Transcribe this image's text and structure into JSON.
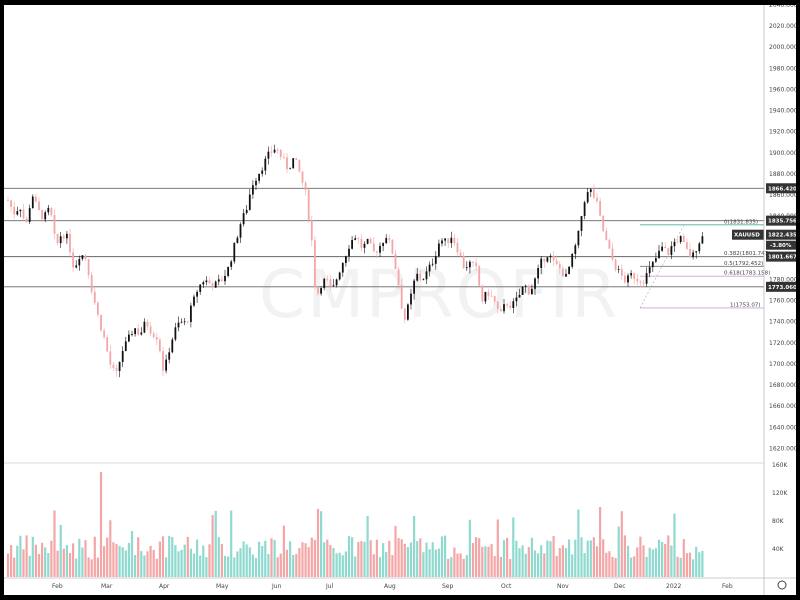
{
  "watermark": "CMPROFIR",
  "colors": {
    "up": "#111111",
    "down": "#f4a6a6",
    "vol_up": "#8fd9cf",
    "vol_down": "#f4a6a6",
    "level": "#666666",
    "tag_bg": "#333333",
    "fib_top": "#4caf9a",
    "fib_bottom": "#c9a0dc"
  },
  "chart_data": {
    "type": "candlestick",
    "symbol": "XAUUSD",
    "x_labels": [
      "Feb",
      "Mar",
      "Apr",
      "May",
      "Jun",
      "Jul",
      "Aug",
      "Sep",
      "Oct",
      "Nov",
      "Dec",
      "2022",
      "Feb"
    ],
    "ylim": [
      1600,
      2040
    ],
    "y_ticks": [
      "2040.000",
      "2020.000",
      "2000.000",
      "1980.000",
      "1960.000",
      "1940.000",
      "1920.000",
      "1900.000",
      "1880.000",
      "1860.000",
      "1840.000",
      "1820.000",
      "1800.000",
      "1780.000",
      "1760.000",
      "1740.000",
      "1720.000",
      "1700.000",
      "1680.000",
      "1660.000",
      "1640.000",
      "1620.000"
    ],
    "volume_ticks": [
      "160K",
      "120K",
      "80K",
      "40K"
    ],
    "volume_ylim": [
      0,
      160000
    ],
    "horizontal_levels": [
      {
        "value": 1866.42,
        "label": "1866.420"
      },
      {
        "value": 1835.756,
        "label": "1835.756"
      },
      {
        "value": 1801.667,
        "label": "1801.667"
      },
      {
        "value": 1773.06,
        "label": "1773.060"
      }
    ],
    "last_price": {
      "value": 1822.435,
      "label": "1822.435",
      "change": "-3.80%",
      "symbol_label": "XAUUSD"
    },
    "fib_levels": [
      {
        "ratio": "0",
        "value": 1831.835,
        "label": "0(1831.835)"
      },
      {
        "ratio": "0.382",
        "value": 1801.747,
        "label": "0.382(1801.747)"
      },
      {
        "ratio": "0.5",
        "value": 1792.452,
        "label": "0.5(1792.452)"
      },
      {
        "ratio": "0.618",
        "value": 1783.158,
        "label": "0.618(1783.158)"
      },
      {
        "ratio": "1",
        "value": 1753.07,
        "label": "1(1753.07)"
      }
    ],
    "close_path": [
      [
        0,
        1855
      ],
      [
        6,
        1843
      ],
      [
        12,
        1850
      ],
      [
        18,
        1830
      ],
      [
        24,
        1862
      ],
      [
        30,
        1845
      ],
      [
        36,
        1838
      ],
      [
        42,
        1848
      ],
      [
        48,
        1810
      ],
      [
        54,
        1825
      ],
      [
        60,
        1818
      ],
      [
        66,
        1790
      ],
      [
        72,
        1805
      ],
      [
        78,
        1800
      ],
      [
        84,
        1770
      ],
      [
        90,
        1745
      ],
      [
        96,
        1725
      ],
      [
        102,
        1700
      ],
      [
        108,
        1688
      ],
      [
        114,
        1712
      ],
      [
        120,
        1722
      ],
      [
        126,
        1735
      ],
      [
        132,
        1728
      ],
      [
        138,
        1740
      ],
      [
        144,
        1730
      ],
      [
        150,
        1725
      ],
      [
        156,
        1690
      ],
      [
        160,
        1710
      ],
      [
        166,
        1730
      ],
      [
        172,
        1740
      ],
      [
        178,
        1738
      ],
      [
        184,
        1755
      ],
      [
        190,
        1772
      ],
      [
        196,
        1780
      ],
      [
        202,
        1776
      ],
      [
        208,
        1775
      ],
      [
        214,
        1780
      ],
      [
        220,
        1790
      ],
      [
        226,
        1810
      ],
      [
        232,
        1832
      ],
      [
        238,
        1845
      ],
      [
        244,
        1870
      ],
      [
        250,
        1880
      ],
      [
        256,
        1890
      ],
      [
        262,
        1900
      ],
      [
        268,
        1905
      ],
      [
        274,
        1895
      ],
      [
        280,
        1885
      ],
      [
        286,
        1895
      ],
      [
        292,
        1880
      ],
      [
        298,
        1860
      ],
      [
        304,
        1815
      ],
      [
        308,
        1760
      ],
      [
        312,
        1775
      ],
      [
        318,
        1780
      ],
      [
        324,
        1768
      ],
      [
        330,
        1785
      ],
      [
        336,
        1800
      ],
      [
        342,
        1815
      ],
      [
        348,
        1822
      ],
      [
        354,
        1810
      ],
      [
        360,
        1815
      ],
      [
        366,
        1805
      ],
      [
        372,
        1812
      ],
      [
        378,
        1822
      ],
      [
        384,
        1808
      ],
      [
        390,
        1780
      ],
      [
        396,
        1740
      ],
      [
        402,
        1760
      ],
      [
        408,
        1785
      ],
      [
        414,
        1780
      ],
      [
        420,
        1788
      ],
      [
        426,
        1800
      ],
      [
        432,
        1818
      ],
      [
        438,
        1815
      ],
      [
        444,
        1822
      ],
      [
        450,
        1808
      ],
      [
        456,
        1792
      ],
      [
        462,
        1795
      ],
      [
        468,
        1790
      ],
      [
        474,
        1760
      ],
      [
        480,
        1768
      ],
      [
        486,
        1760
      ],
      [
        492,
        1745
      ],
      [
        498,
        1758
      ],
      [
        504,
        1755
      ],
      [
        510,
        1762
      ],
      [
        516,
        1775
      ],
      [
        522,
        1768
      ],
      [
        528,
        1782
      ],
      [
        534,
        1798
      ],
      [
        540,
        1805
      ],
      [
        546,
        1795
      ],
      [
        552,
        1790
      ],
      [
        558,
        1782
      ],
      [
        564,
        1800
      ],
      [
        570,
        1820
      ],
      [
        576,
        1855
      ],
      [
        582,
        1865
      ],
      [
        588,
        1855
      ],
      [
        594,
        1830
      ],
      [
        600,
        1810
      ],
      [
        606,
        1795
      ],
      [
        612,
        1785
      ],
      [
        618,
        1778
      ],
      [
        624,
        1785
      ],
      [
        630,
        1780
      ],
      [
        636,
        1780
      ],
      [
        642,
        1790
      ],
      [
        648,
        1800
      ],
      [
        654,
        1810
      ],
      [
        660,
        1805
      ],
      [
        666,
        1815
      ],
      [
        672,
        1820
      ],
      [
        678,
        1808
      ],
      [
        684,
        1800
      ],
      [
        690,
        1815
      ],
      [
        696,
        1822
      ]
    ]
  }
}
